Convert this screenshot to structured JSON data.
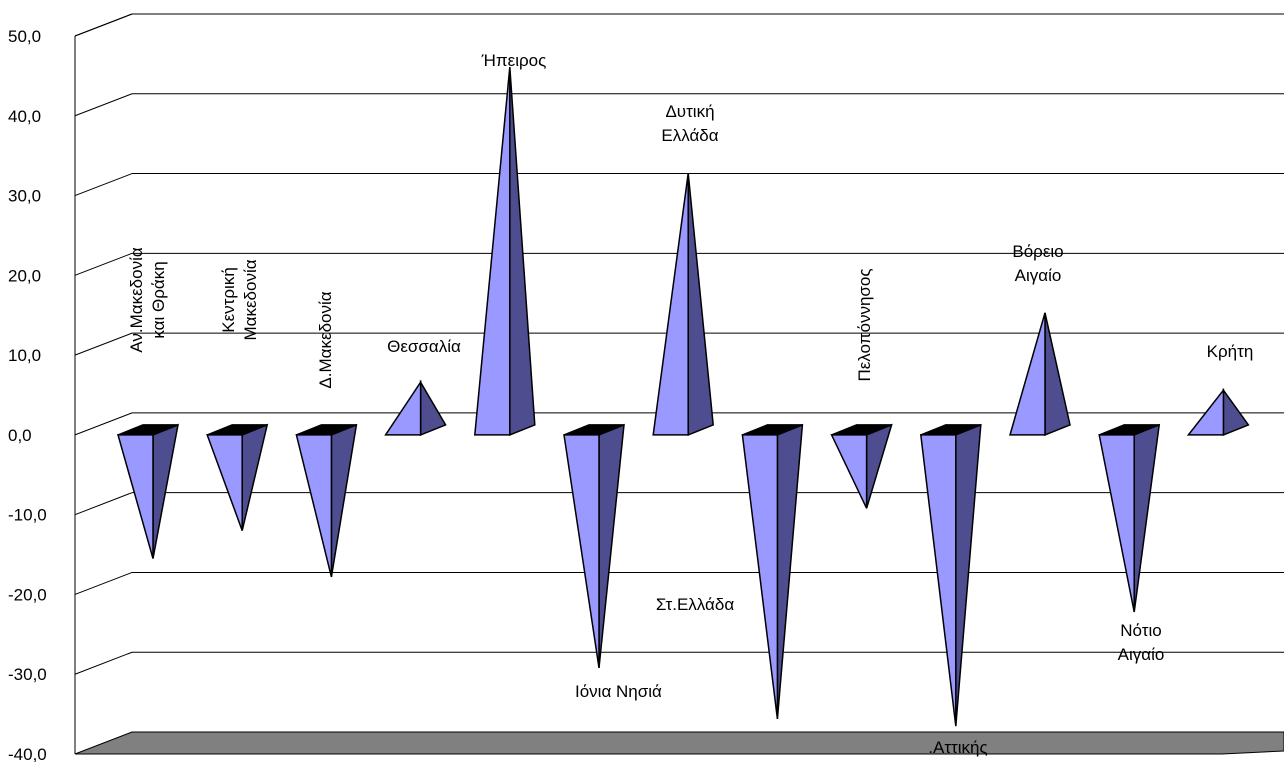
{
  "chart_data": {
    "type": "bar",
    "bar_shape": "pyramid-3d",
    "categories": [
      "Αν.Μακεδονία και Θράκη",
      "Κεντρική Μακεδονία",
      "Δ.Μακεδονία",
      "Θεσσαλία",
      "Ήπειρος",
      "Ιόνια Νησιά",
      "Δυτική Ελλάδα",
      "Στ.Ελλάδα",
      "Πελοπόννησος",
      ".Αττικής",
      "Βόρειο Αιγαίο",
      "Νότιο Αιγαίο",
      "Κρήτη"
    ],
    "category_label_lines": [
      [
        "Αν.Μακεδονία",
        "και Θράκη"
      ],
      [
        "Κεντρική",
        "Μακεδονία"
      ],
      [
        "Δ.Μακεδονία"
      ],
      [
        "Θεσσαλία"
      ],
      [
        "Ήπειρος"
      ],
      [
        "Ιόνια Νησιά"
      ],
      [
        "Δυτική",
        "Ελλάδα"
      ],
      [
        "Στ.Ελλάδα"
      ],
      [
        "Πελοπόννησος"
      ],
      [
        ".Αττικής"
      ],
      [
        "Βόρειο",
        "Αιγαίο"
      ],
      [
        "Νότιο",
        "Αιγαίο"
      ],
      [
        "Κρήτη"
      ]
    ],
    "series": [
      {
        "values": [
          -15.5,
          -12.0,
          -17.8,
          6.6,
          46.1,
          -29.2,
          32.8,
          -35.6,
          -9.2,
          -36.5,
          15.3,
          -22.2,
          5.6
        ]
      }
    ],
    "ylim": [
      -40,
      50
    ],
    "yticks": [
      "-40,0",
      "-30,0",
      "-20,0",
      "-10,0",
      "0,0",
      "10,0",
      "20,0",
      "30,0",
      "40,0",
      "50,0"
    ],
    "title": "",
    "xlabel": "",
    "ylabel": "",
    "grid": true,
    "legend": "none",
    "colors": {
      "front_face": "#9999ff",
      "side_face": "#4d4d8f",
      "top_face": "#000000",
      "floor": "#808080",
      "gridline": "#000000"
    }
  }
}
